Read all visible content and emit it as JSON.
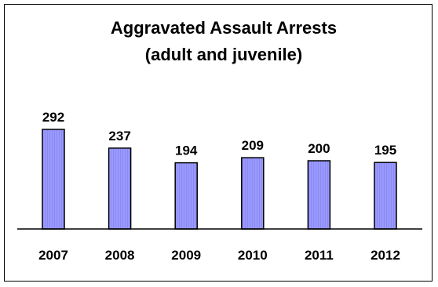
{
  "chart_data": {
    "type": "bar",
    "title": "Aggravated Assault Arrests",
    "subtitle": "(adult and juvenile)",
    "categories": [
      "2007",
      "2008",
      "2009",
      "2010",
      "2011",
      "2012"
    ],
    "values": [
      292,
      237,
      194,
      209,
      200,
      195
    ],
    "xlabel": "",
    "ylabel": "",
    "ylim": [
      0,
      292
    ],
    "grid": false,
    "legend": "none",
    "bar_color": "#9999ff",
    "bar_edge_color": "#000000"
  }
}
